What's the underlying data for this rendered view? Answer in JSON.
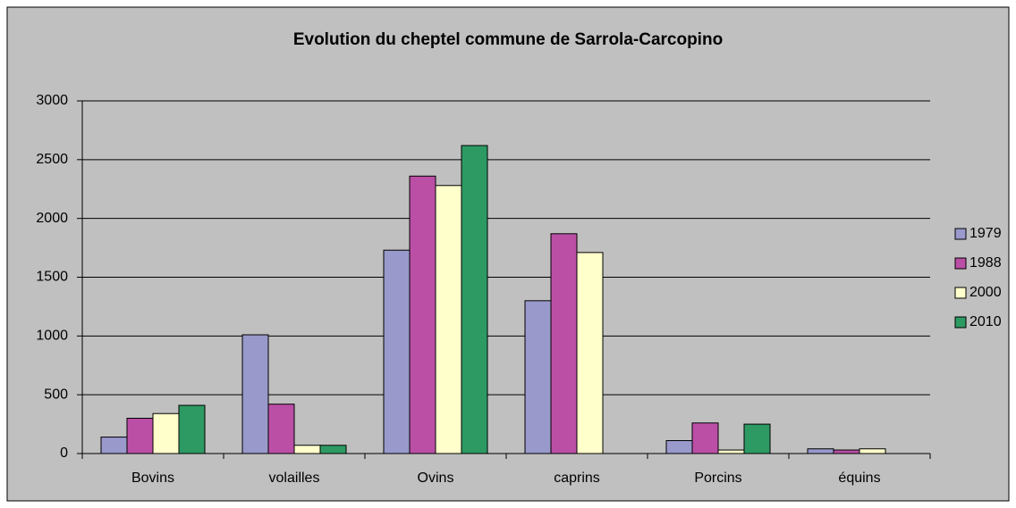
{
  "chart_data": {
    "type": "bar",
    "title": "Evolution du cheptel commune de Sarrola-Carcopino",
    "categories": [
      "Bovins",
      "volailles",
      "Ovins",
      "caprins",
      "Porcins",
      "équins"
    ],
    "series": [
      {
        "name": "1979",
        "color": "#9999cc",
        "values": [
          140,
          1010,
          1730,
          1300,
          110,
          40
        ]
      },
      {
        "name": "1988",
        "color": "#bb4fa6",
        "values": [
          300,
          420,
          2360,
          1870,
          260,
          30
        ]
      },
      {
        "name": "2000",
        "color": "#ffffcc",
        "values": [
          340,
          70,
          2280,
          1710,
          30,
          40
        ]
      },
      {
        "name": "2010",
        "color": "#2e9a63",
        "values": [
          410,
          70,
          2620,
          null,
          250,
          null
        ]
      }
    ],
    "ylim": [
      0,
      3000
    ],
    "yticks": [
      0,
      500,
      1000,
      1500,
      2000,
      2500,
      3000
    ],
    "grid": true,
    "legend": "right"
  }
}
